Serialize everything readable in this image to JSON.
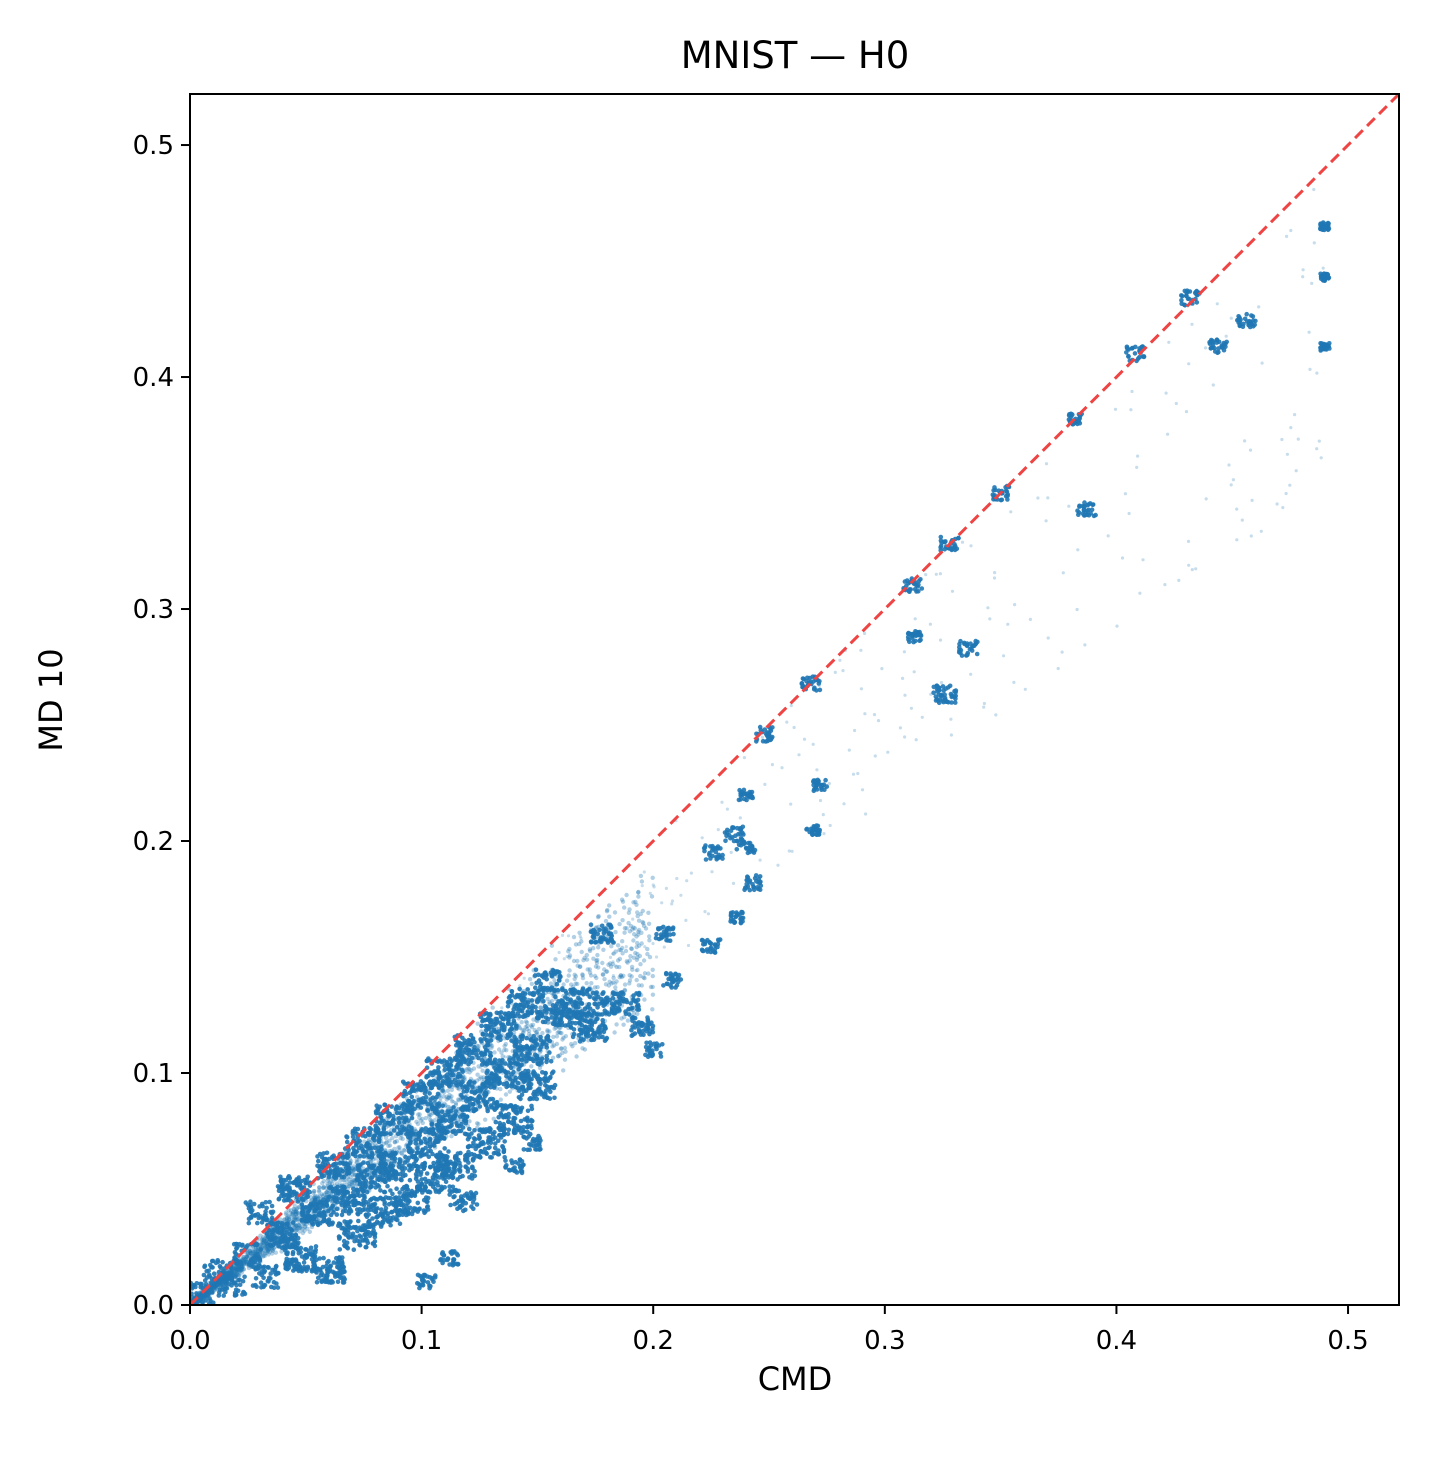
{
  "chart_data": {
    "type": "scatter",
    "title": "MNIST — H0",
    "xlabel": "CMD",
    "ylabel": "MD 10",
    "xlim": [
      0.0,
      0.522
    ],
    "ylim": [
      0.0,
      0.522
    ],
    "xticks": [
      "0.0",
      "0.1",
      "0.2",
      "0.3",
      "0.4",
      "0.5"
    ],
    "yticks": [
      "0.0",
      "0.1",
      "0.2",
      "0.3",
      "0.4",
      "0.5"
    ],
    "grid": false,
    "legend": "none",
    "point_color": "#1f77b4",
    "reference_line": {
      "style": "dashed",
      "color": "#ee4444",
      "from": [
        0,
        0
      ],
      "to": [
        0.522,
        0.522
      ]
    },
    "series": [
      {
        "clusters": [
          [
            0.005,
            0.005,
            0.006
          ],
          [
            0.012,
            0.015,
            0.006
          ],
          [
            0.018,
            0.008,
            0.006
          ],
          [
            0.025,
            0.022,
            0.006
          ],
          [
            0.03,
            0.04,
            0.006
          ],
          [
            0.033,
            0.012,
            0.006
          ],
          [
            0.04,
            0.03,
            0.007
          ],
          [
            0.045,
            0.05,
            0.007
          ],
          [
            0.048,
            0.02,
            0.007
          ],
          [
            0.055,
            0.04,
            0.007
          ],
          [
            0.06,
            0.015,
            0.007
          ],
          [
            0.062,
            0.06,
            0.007
          ],
          [
            0.068,
            0.045,
            0.008
          ],
          [
            0.072,
            0.03,
            0.008
          ],
          [
            0.075,
            0.07,
            0.008
          ],
          [
            0.08,
            0.055,
            0.008
          ],
          [
            0.083,
            0.04,
            0.008
          ],
          [
            0.088,
            0.08,
            0.008
          ],
          [
            0.09,
            0.06,
            0.008
          ],
          [
            0.095,
            0.045,
            0.008
          ],
          [
            0.1,
            0.09,
            0.008
          ],
          [
            0.102,
            0.07,
            0.008
          ],
          [
            0.106,
            0.055,
            0.008
          ],
          [
            0.11,
            0.1,
            0.008
          ],
          [
            0.112,
            0.08,
            0.008
          ],
          [
            0.115,
            0.06,
            0.008
          ],
          [
            0.118,
            0.045,
            0.006
          ],
          [
            0.122,
            0.11,
            0.008
          ],
          [
            0.125,
            0.09,
            0.008
          ],
          [
            0.128,
            0.07,
            0.008
          ],
          [
            0.133,
            0.12,
            0.008
          ],
          [
            0.136,
            0.1,
            0.008
          ],
          [
            0.14,
            0.08,
            0.008
          ],
          [
            0.145,
            0.13,
            0.008
          ],
          [
            0.148,
            0.11,
            0.008
          ],
          [
            0.15,
            0.095,
            0.008
          ],
          [
            0.155,
            0.14,
            0.006
          ],
          [
            0.158,
            0.125,
            0.006
          ],
          [
            0.165,
            0.13,
            0.008
          ],
          [
            0.172,
            0.12,
            0.008
          ],
          [
            0.178,
            0.16,
            0.005
          ],
          [
            0.18,
            0.13,
            0.006
          ],
          [
            0.188,
            0.13,
            0.006
          ],
          [
            0.195,
            0.12,
            0.005
          ],
          [
            0.2,
            0.11,
            0.004
          ],
          [
            0.102,
            0.01,
            0.004
          ],
          [
            0.112,
            0.02,
            0.004
          ],
          [
            0.14,
            0.06,
            0.004
          ],
          [
            0.148,
            0.07,
            0.004
          ],
          [
            0.205,
            0.16,
            0.004
          ],
          [
            0.208,
            0.14,
            0.004
          ],
          [
            0.225,
            0.155,
            0.004
          ],
          [
            0.226,
            0.195,
            0.004
          ],
          [
            0.24,
            0.198,
            0.004
          ],
          [
            0.235,
            0.203,
            0.004
          ],
          [
            0.243,
            0.182,
            0.004
          ],
          [
            0.236,
            0.167,
            0.003
          ],
          [
            0.24,
            0.22,
            0.003
          ],
          [
            0.269,
            0.205,
            0.003
          ],
          [
            0.272,
            0.224,
            0.003
          ],
          [
            0.248,
            0.246,
            0.004
          ],
          [
            0.268,
            0.268,
            0.004
          ],
          [
            0.312,
            0.31,
            0.004
          ],
          [
            0.313,
            0.288,
            0.003
          ],
          [
            0.326,
            0.263,
            0.005
          ],
          [
            0.328,
            0.328,
            0.004
          ],
          [
            0.336,
            0.283,
            0.004
          ],
          [
            0.35,
            0.35,
            0.004
          ],
          [
            0.387,
            0.343,
            0.004
          ],
          [
            0.382,
            0.382,
            0.003
          ],
          [
            0.408,
            0.41,
            0.004
          ],
          [
            0.432,
            0.434,
            0.004
          ],
          [
            0.444,
            0.413,
            0.004
          ],
          [
            0.456,
            0.424,
            0.004
          ],
          [
            0.49,
            0.465,
            0.002
          ],
          [
            0.49,
            0.443,
            0.002
          ],
          [
            0.49,
            0.413,
            0.002
          ]
        ]
      }
    ]
  }
}
